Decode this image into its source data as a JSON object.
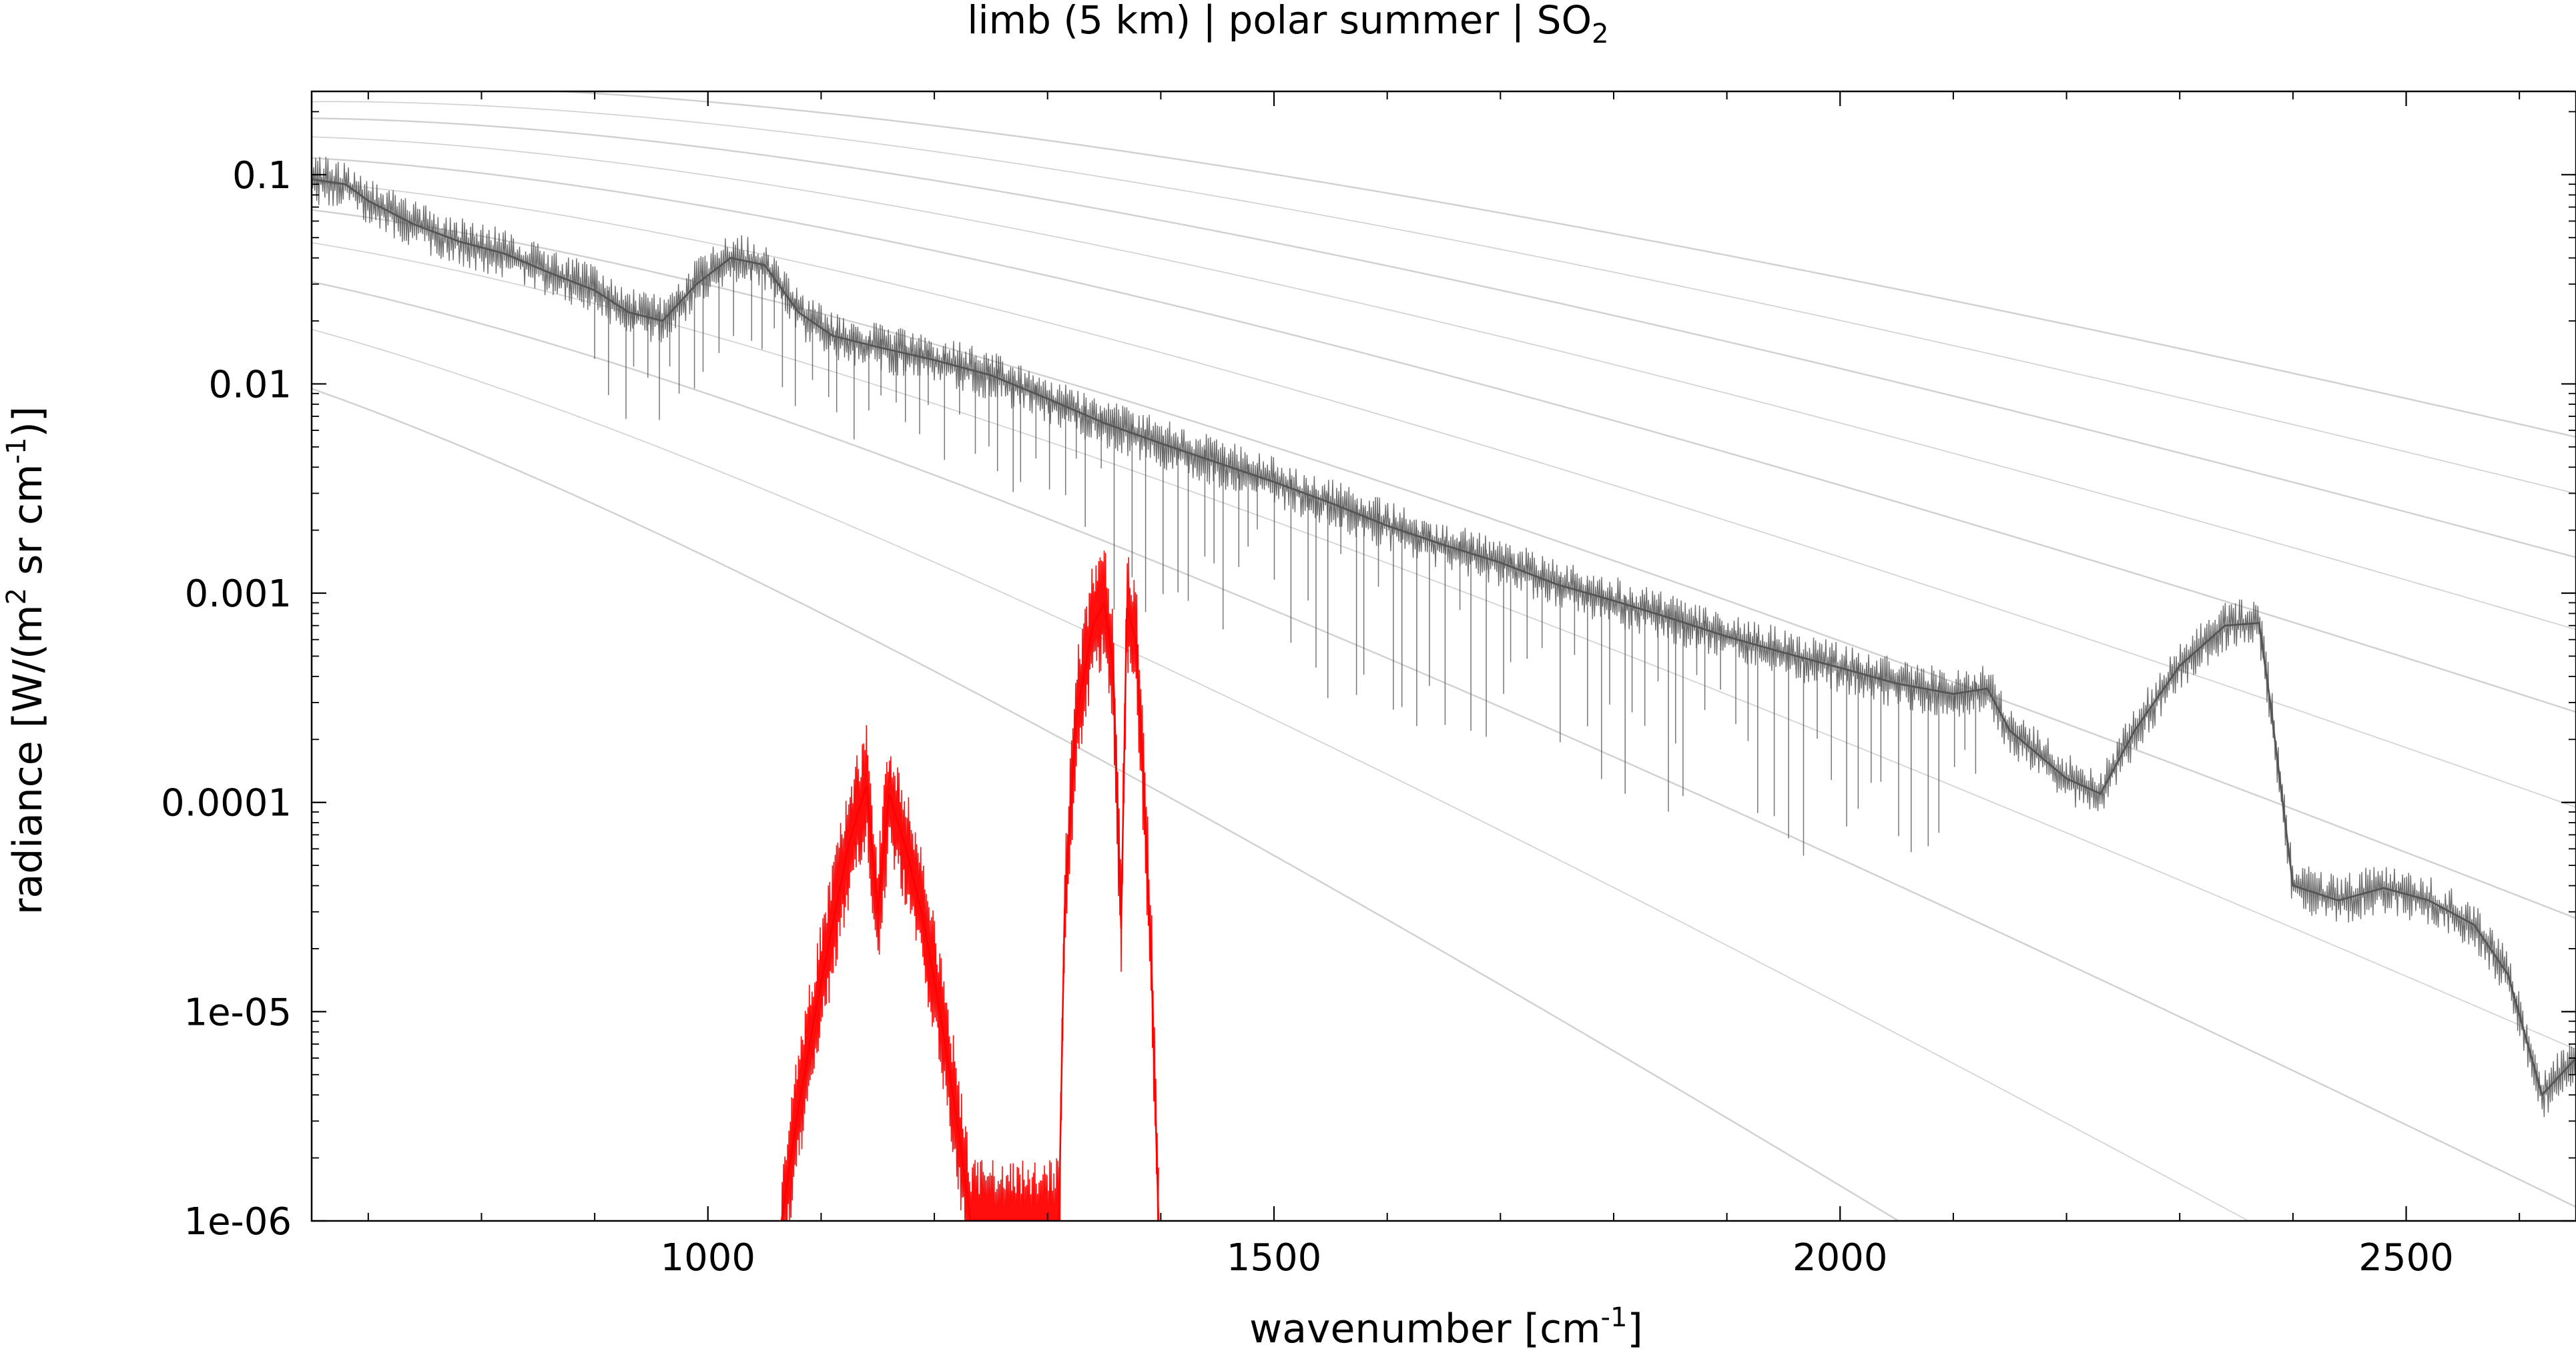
{
  "chart_data": {
    "type": "line",
    "title": {
      "prefix": "limb (5 km) | polar summer | SO",
      "subscript": "2"
    },
    "xlabel": {
      "prefix": "wavenumber [cm",
      "superscript": "-1",
      "suffix": "]"
    },
    "ylabel": {
      "part1": "radiance [W/(m",
      "sup1": "2",
      "part2": " sr cm",
      "sup2": "-1",
      "part3": ")]"
    },
    "x_range": [
      650,
      2650
    ],
    "y_range": [
      1e-06,
      0.25
    ],
    "y_scale": "log",
    "x_ticks": [
      {
        "value": 1000,
        "label": "1000"
      },
      {
        "value": 1500,
        "label": "1500"
      },
      {
        "value": 2000,
        "label": "2000"
      },
      {
        "value": 2500,
        "label": "2500"
      }
    ],
    "x_minor_ticks": [
      700,
      800,
      900,
      1100,
      1200,
      1300,
      1400,
      1600,
      1700,
      1800,
      1900,
      2100,
      2200,
      2300,
      2400,
      2600
    ],
    "y_ticks": [
      {
        "value": 0.1,
        "label": "0.1"
      },
      {
        "value": 0.01,
        "label": "0.01"
      },
      {
        "value": 0.001,
        "label": "0.001"
      },
      {
        "value": 0.0001,
        "label": "0.0001"
      },
      {
        "value": 1e-05,
        "label": "1e-05"
      },
      {
        "value": 1e-06,
        "label": "1e-06"
      }
    ],
    "grid": false,
    "legend": "none",
    "colors": {
      "total_radiance": "#555555",
      "so2_contribution": "#ff0000",
      "planck_reference": "#c8c8c8"
    },
    "series": [
      {
        "key": "total_radiance",
        "style": "dense-line",
        "points": [
          [
            650,
            0.095
          ],
          [
            680,
            0.09
          ],
          [
            700,
            0.075
          ],
          [
            740,
            0.058
          ],
          [
            780,
            0.048
          ],
          [
            820,
            0.042
          ],
          [
            860,
            0.034
          ],
          [
            900,
            0.028
          ],
          [
            930,
            0.022
          ],
          [
            960,
            0.02
          ],
          [
            990,
            0.03
          ],
          [
            1020,
            0.04
          ],
          [
            1050,
            0.037
          ],
          [
            1080,
            0.022
          ],
          [
            1110,
            0.017
          ],
          [
            1150,
            0.015
          ],
          [
            1200,
            0.013
          ],
          [
            1250,
            0.011
          ],
          [
            1300,
            0.0085
          ],
          [
            1350,
            0.0065
          ],
          [
            1400,
            0.0052
          ],
          [
            1450,
            0.0042
          ],
          [
            1500,
            0.0034
          ],
          [
            1550,
            0.0027
          ],
          [
            1600,
            0.0021
          ],
          [
            1650,
            0.0017
          ],
          [
            1700,
            0.0014
          ],
          [
            1750,
            0.0011
          ],
          [
            1800,
            0.00092
          ],
          [
            1850,
            0.00076
          ],
          [
            1900,
            0.00062
          ],
          [
            1950,
            0.00052
          ],
          [
            2000,
            0.00044
          ],
          [
            2050,
            0.00037
          ],
          [
            2100,
            0.00033
          ],
          [
            2130,
            0.00035
          ],
          [
            2150,
            0.00022
          ],
          [
            2200,
            0.00013
          ],
          [
            2230,
            0.00011
          ],
          [
            2260,
            0.00022
          ],
          [
            2300,
            0.00045
          ],
          [
            2340,
            0.0007
          ],
          [
            2370,
            0.00072
          ],
          [
            2380,
            0.0003
          ],
          [
            2400,
            4e-05
          ],
          [
            2440,
            3.4e-05
          ],
          [
            2480,
            3.9e-05
          ],
          [
            2520,
            3.4e-05
          ],
          [
            2560,
            2.6e-05
          ],
          [
            2590,
            1.5e-05
          ],
          [
            2620,
            4e-06
          ],
          [
            2650,
            6e-06
          ]
        ]
      },
      {
        "key": "so2_contribution",
        "style": "dense-line",
        "points": [
          [
            1065,
            1e-06
          ],
          [
            1080,
            3.5e-06
          ],
          [
            1095,
            1e-05
          ],
          [
            1110,
            2.6e-05
          ],
          [
            1125,
            6.5e-05
          ],
          [
            1140,
            0.00012
          ],
          [
            1150,
            3e-05
          ],
          [
            1160,
            0.00011
          ],
          [
            1175,
            6e-05
          ],
          [
            1190,
            2.8e-05
          ],
          [
            1205,
            1e-05
          ],
          [
            1220,
            3e-06
          ],
          [
            1232,
            1e-06
          ],
          [
            1310,
            1e-06
          ],
          [
            1315,
            3e-05
          ],
          [
            1325,
            0.00025
          ],
          [
            1340,
            0.0007
          ],
          [
            1350,
            0.0009
          ],
          [
            1358,
            0.00045
          ],
          [
            1365,
            2.5e-05
          ],
          [
            1370,
            0.00085
          ],
          [
            1378,
            0.0006
          ],
          [
            1385,
            0.00012
          ],
          [
            1392,
            1.5e-05
          ],
          [
            1398,
            1e-06
          ]
        ]
      }
    ],
    "reference_curves": {
      "description": "Planck blackbody radiance curves",
      "temperatures_K": [
        160,
        180,
        200,
        220,
        240,
        260,
        280,
        300,
        320,
        340,
        360
      ]
    }
  }
}
